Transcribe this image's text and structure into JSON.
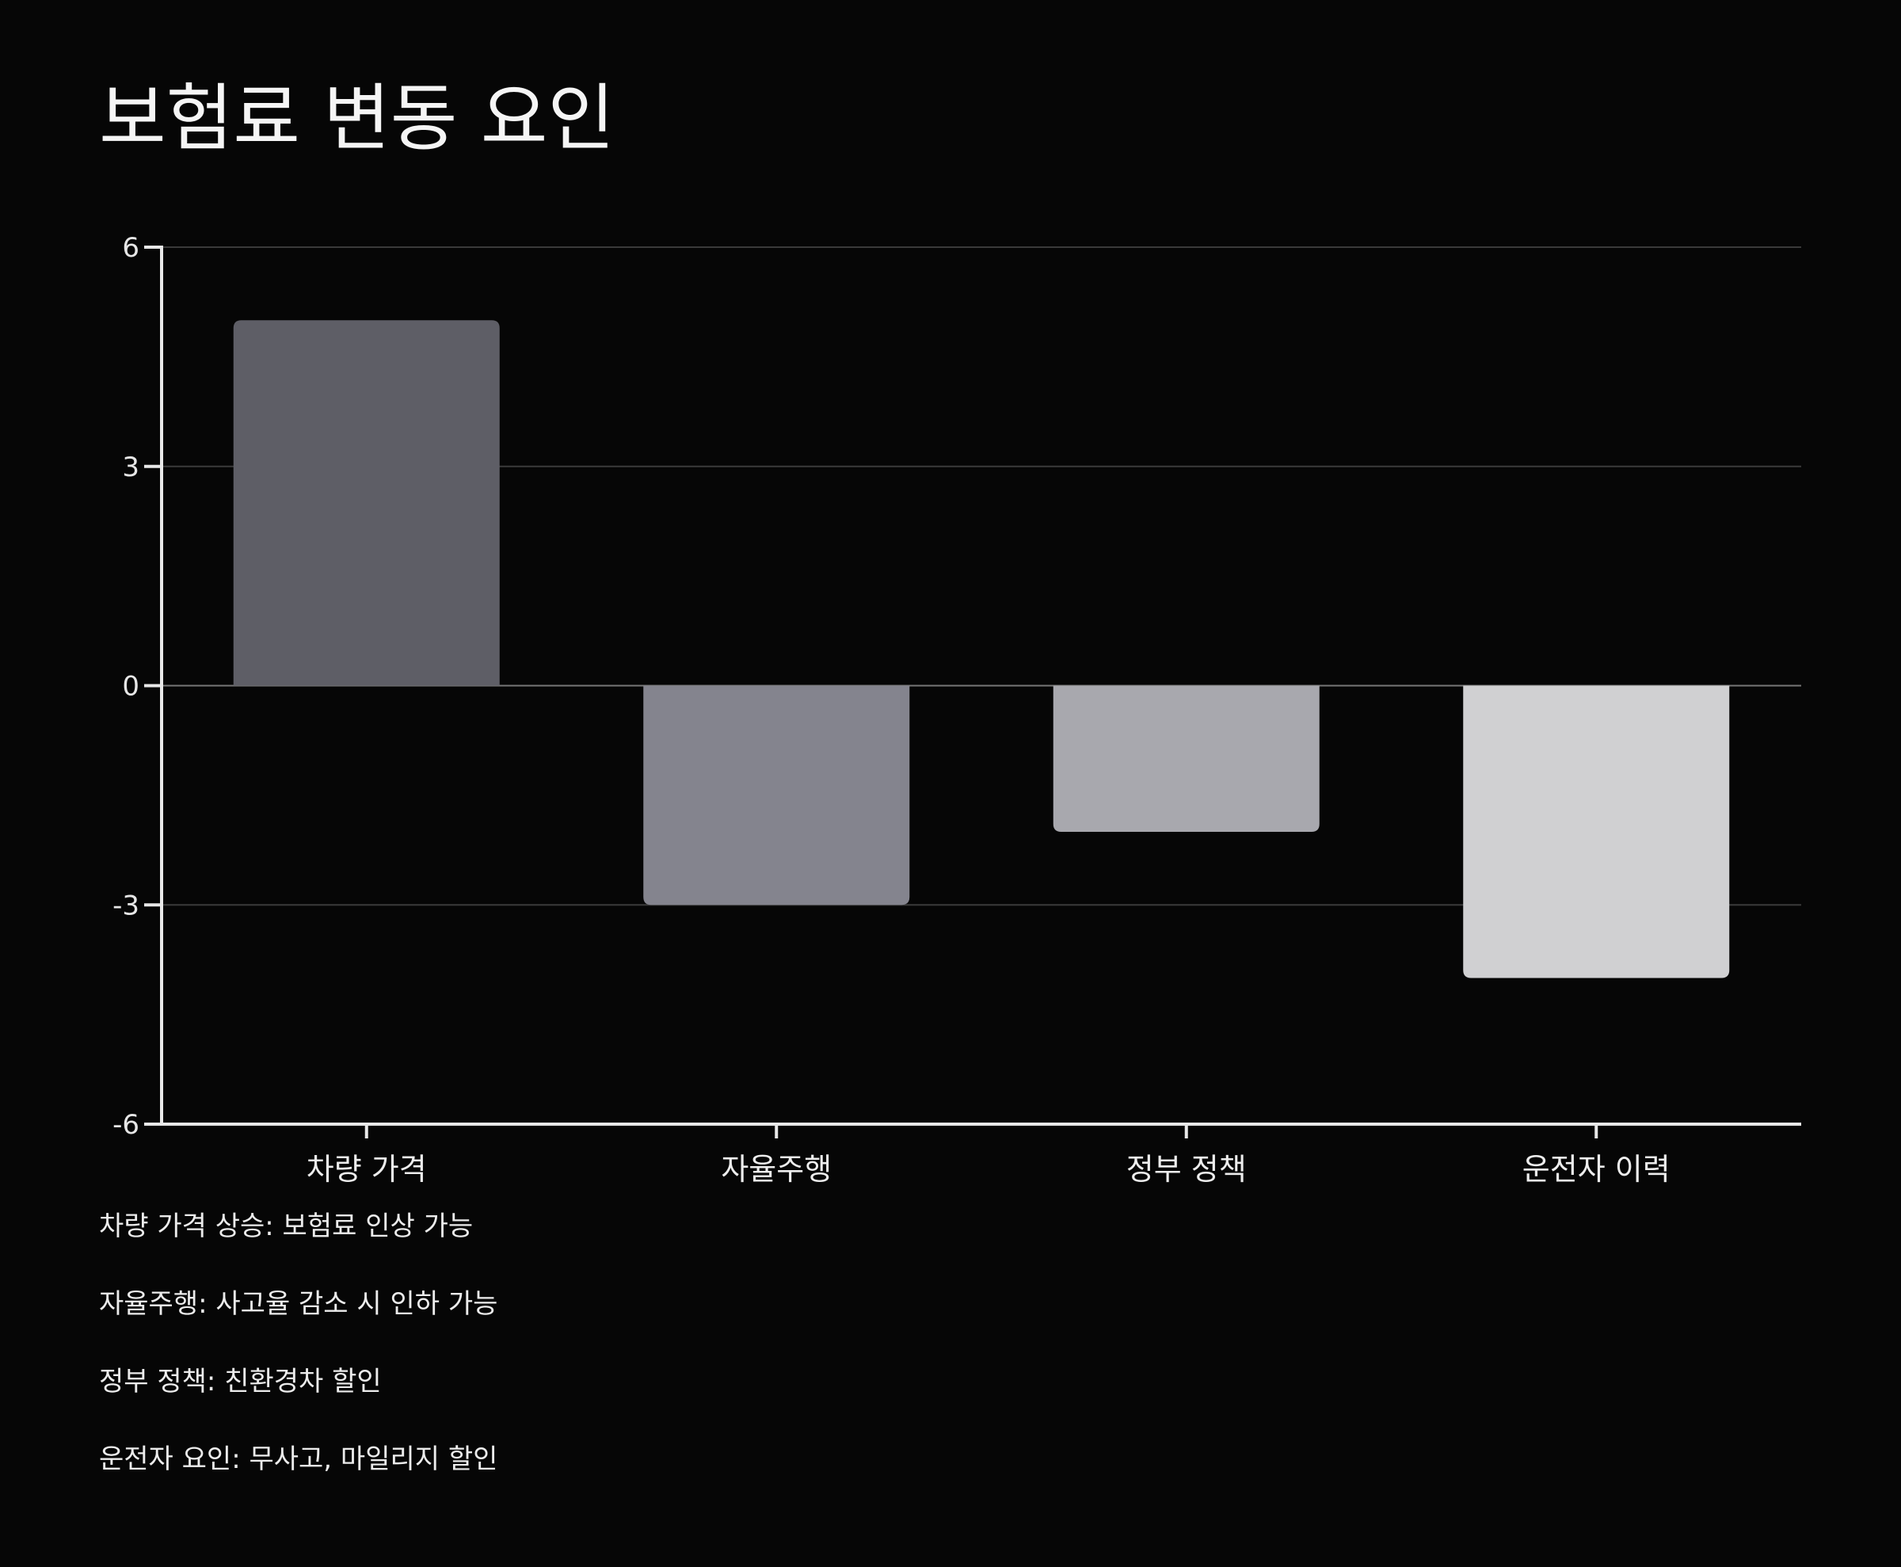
{
  "chart_data": {
    "type": "bar",
    "title": "보험료 변동 요인",
    "xlabel": "",
    "ylabel": "",
    "categories": [
      "차량 가격",
      "자율주행",
      "정부 정책",
      "운전자 이력"
    ],
    "values": [
      5,
      -3,
      -2,
      -4
    ],
    "colors": [
      "#5e5e66",
      "#84848e",
      "#a8a8ae",
      "#d0d0d2"
    ],
    "ylim": [
      -6,
      6
    ],
    "yticks": [
      6,
      3,
      0,
      -3,
      -6
    ],
    "ytick_labels": [
      "6",
      "3",
      "0",
      "-3",
      "-6"
    ],
    "grid": true,
    "legend": "none",
    "annotations": [
      "차량 가격 상승: 보험료 인상 가능",
      "자율주행: 사고율 감소 시 인하 가능",
      "정부 정책: 친환경차 할인",
      "운전자 요인: 무사고, 마일리지 할인"
    ]
  },
  "colors": {
    "background": "#060606",
    "axis": "#e8e8e8",
    "grid": "#3a3a3a",
    "zero_line": "#777777"
  }
}
